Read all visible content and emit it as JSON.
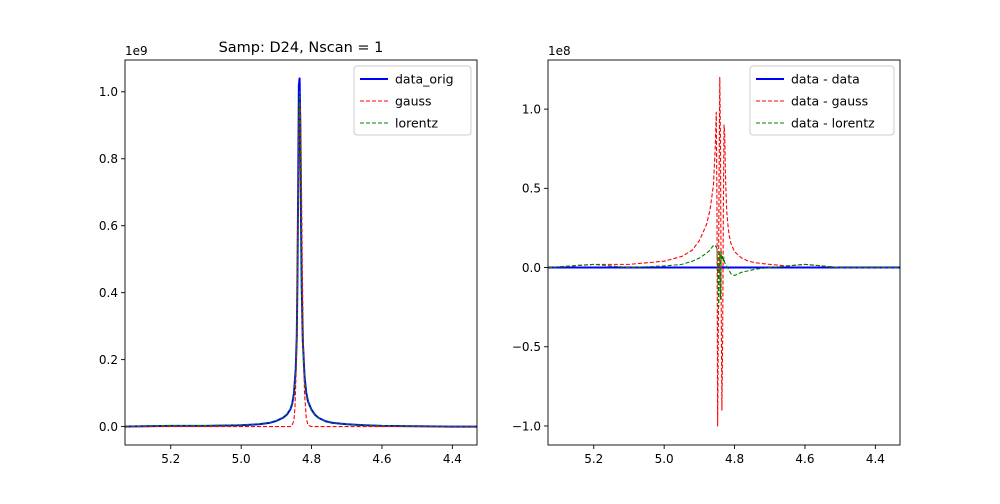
{
  "chart_data": [
    {
      "type": "line",
      "title": "Samp: D24, Nscan = 1",
      "xlabel": "",
      "ylabel": "",
      "x_inverted": true,
      "xlim": [
        5.33,
        4.33
      ],
      "ylim": [
        -0.055,
        1.095
      ],
      "y_offset_label": "1e9",
      "x_ticks": [
        5.2,
        5.0,
        4.8,
        4.6,
        4.4
      ],
      "x_tick_labels": [
        "5.2",
        "5.0",
        "4.8",
        "4.6",
        "4.4"
      ],
      "y_ticks": [
        0.0,
        0.2,
        0.4,
        0.6,
        0.8,
        1.0
      ],
      "y_tick_labels": [
        "0.0",
        "0.2",
        "0.4",
        "0.6",
        "0.8",
        "1.0"
      ],
      "legend_position": "top-right",
      "series": [
        {
          "name": "data_orig",
          "color": "#0000ff",
          "style": "solid",
          "x": [
            5.33,
            5.2,
            5.1,
            5.0,
            4.95,
            4.92,
            4.9,
            4.88,
            4.87,
            4.86,
            4.855,
            4.85,
            4.845,
            4.842,
            4.84,
            4.838,
            4.836,
            4.834,
            4.832,
            4.83,
            4.828,
            4.825,
            4.82,
            4.815,
            4.81,
            4.8,
            4.79,
            4.78,
            4.76,
            4.74,
            4.7,
            4.65,
            4.6,
            4.5,
            4.4,
            4.33
          ],
          "y": [
            0.0,
            0.002,
            0.002,
            0.004,
            0.007,
            0.011,
            0.017,
            0.027,
            0.036,
            0.052,
            0.068,
            0.1,
            0.17,
            0.27,
            0.45,
            0.72,
            1.02,
            1.04,
            0.9,
            0.62,
            0.42,
            0.26,
            0.15,
            0.1,
            0.075,
            0.05,
            0.035,
            0.026,
            0.016,
            0.011,
            0.007,
            0.004,
            0.002,
            0.001,
            0.0,
            0.0
          ]
        },
        {
          "name": "gauss",
          "color": "#ff0000",
          "style": "dashed",
          "x": [
            5.33,
            5.2,
            5.0,
            4.9,
            4.87,
            4.86,
            4.855,
            4.85,
            4.847,
            4.844,
            4.842,
            4.84,
            4.838,
            4.836,
            4.834,
            4.832,
            4.83,
            4.828,
            4.826,
            4.823,
            4.82,
            4.815,
            4.81,
            4.8,
            4.7,
            4.6,
            4.5,
            4.4,
            4.33
          ],
          "y": [
            0.0,
            0.0,
            0.0,
            0.0,
            0.0,
            0.0,
            0.004,
            0.02,
            0.06,
            0.16,
            0.3,
            0.5,
            0.7,
            0.87,
            0.97,
            0.96,
            0.86,
            0.66,
            0.45,
            0.23,
            0.1,
            0.025,
            0.004,
            0.0,
            0.0,
            0.0,
            0.0,
            0.0,
            0.0
          ]
        },
        {
          "name": "lorentz",
          "color": "#008000",
          "style": "dashed",
          "x": [
            5.33,
            5.2,
            5.1,
            5.0,
            4.95,
            4.92,
            4.9,
            4.88,
            4.87,
            4.86,
            4.855,
            4.85,
            4.845,
            4.842,
            4.84,
            4.838,
            4.836,
            4.834,
            4.832,
            4.83,
            4.828,
            4.825,
            4.82,
            4.815,
            4.81,
            4.8,
            4.79,
            4.78,
            4.76,
            4.74,
            4.7,
            4.65,
            4.6,
            4.5,
            4.4,
            4.33
          ],
          "y": [
            0.001,
            0.003,
            0.003,
            0.005,
            0.008,
            0.012,
            0.018,
            0.028,
            0.038,
            0.054,
            0.07,
            0.1,
            0.16,
            0.25,
            0.4,
            0.65,
            0.92,
            1.0,
            0.87,
            0.6,
            0.4,
            0.25,
            0.145,
            0.098,
            0.073,
            0.048,
            0.034,
            0.025,
            0.016,
            0.011,
            0.007,
            0.004,
            0.003,
            0.001,
            0.001,
            0.001
          ]
        }
      ]
    },
    {
      "type": "line",
      "title": "",
      "xlabel": "",
      "ylabel": "",
      "x_inverted": true,
      "xlim": [
        5.33,
        4.33
      ],
      "ylim": [
        -1.12,
        1.31
      ],
      "y_offset_label": "1e8",
      "x_ticks": [
        5.2,
        5.0,
        4.8,
        4.6,
        4.4
      ],
      "x_tick_labels": [
        "5.2",
        "5.0",
        "4.8",
        "4.6",
        "4.4"
      ],
      "y_ticks": [
        -1.0,
        -0.5,
        0.0,
        0.5,
        1.0
      ],
      "y_tick_labels": [
        "−1.0",
        "−0.5",
        "0.0",
        "0.5",
        "1.0"
      ],
      "legend_position": "top-right",
      "series": [
        {
          "name": "data - data",
          "color": "#0000ff",
          "style": "solid",
          "x": [
            5.33,
            4.33
          ],
          "y": [
            0.0,
            0.0
          ]
        },
        {
          "name": "data - gauss",
          "color": "#ff0000",
          "style": "dashed",
          "x": [
            5.33,
            5.2,
            5.1,
            5.0,
            4.95,
            4.92,
            4.9,
            4.88,
            4.87,
            4.86,
            4.855,
            4.852,
            4.85,
            4.848,
            4.846,
            4.844,
            4.842,
            4.84,
            4.838,
            4.836,
            4.834,
            4.832,
            4.83,
            4.828,
            4.826,
            4.824,
            4.822,
            4.82,
            4.818,
            4.815,
            4.81,
            4.8,
            4.79,
            4.78,
            4.76,
            4.74,
            4.7,
            4.65,
            4.6,
            4.5,
            4.4,
            4.33
          ],
          "y": [
            0.0,
            0.02,
            0.02,
            0.04,
            0.07,
            0.11,
            0.17,
            0.27,
            0.36,
            0.52,
            0.75,
            0.98,
            0.4,
            -1.0,
            -0.3,
            0.55,
            1.2,
            0.8,
            -0.2,
            -0.9,
            -0.5,
            0.3,
            0.9,
            0.85,
            0.6,
            0.45,
            0.35,
            0.3,
            0.25,
            0.2,
            0.15,
            0.1,
            0.08,
            0.06,
            0.04,
            0.03,
            0.02,
            0.01,
            0.02,
            0.0,
            0.0,
            0.0
          ]
        },
        {
          "name": "data - lorentz",
          "color": "#008000",
          "style": "dashed",
          "x": [
            5.33,
            5.2,
            5.1,
            5.0,
            4.95,
            4.92,
            4.9,
            4.88,
            4.87,
            4.86,
            4.855,
            4.85,
            4.845,
            4.842,
            4.84,
            4.838,
            4.836,
            4.834,
            4.832,
            4.83,
            4.828,
            4.825,
            4.82,
            4.815,
            4.81,
            4.8,
            4.78,
            4.76,
            4.74,
            4.7,
            4.65,
            4.6,
            4.5,
            4.4,
            4.33
          ],
          "y": [
            0.0,
            0.02,
            0.0,
            0.01,
            0.02,
            0.04,
            0.06,
            0.09,
            0.11,
            0.14,
            0.14,
            0.12,
            -0.25,
            0.1,
            -0.2,
            0.1,
            0.05,
            0.07,
            0.04,
            0.06,
            0.03,
            0.02,
            0.0,
            -0.02,
            -0.04,
            -0.05,
            -0.03,
            -0.02,
            -0.01,
            0.0,
            0.01,
            0.02,
            0.0,
            0.0,
            0.0
          ]
        }
      ]
    }
  ]
}
